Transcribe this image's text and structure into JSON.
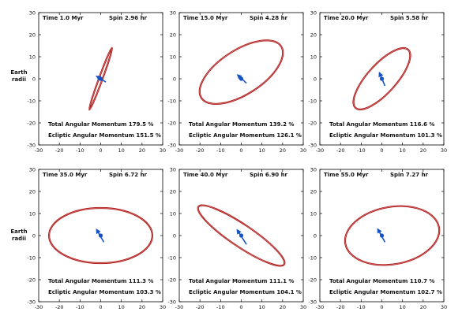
{
  "side_label": [
    "Earth",
    "radii"
  ],
  "colors": {
    "orbit": "#b01616",
    "arrow": "#1553c4",
    "frame": "#000000"
  },
  "chart_data": [
    {
      "type": "scatter",
      "time_label": "Time",
      "time": "1.0 Myr",
      "spin_label": "Spin",
      "spin": "2.96 hr",
      "total_label": "Total Angular Momentum",
      "total": "179.5 %",
      "ecliptic_label": "Ecliptic Angular Momentum",
      "ecliptic": "151.5 %",
      "xlim": [
        -30,
        30
      ],
      "ylim": [
        -30,
        30
      ],
      "xticks": [
        "-30",
        "-20",
        "-10",
        "0",
        "10",
        "20",
        "30"
      ],
      "yticks": [
        "30",
        "20",
        "10",
        "0",
        "-10",
        "-20",
        "-30"
      ],
      "orbit": {
        "cx": 0,
        "cy": 0,
        "rx": 16,
        "ry": 0.8,
        "angle_deg": 70
      },
      "arrow": {
        "x0": 2.5,
        "y0": -1.5,
        "x1": -2,
        "y1": 1.2
      }
    },
    {
      "type": "scatter",
      "time_label": "Time",
      "time": "15.0 Myr",
      "spin_label": "Spin",
      "spin": "4.28 hr",
      "total_label": "Total Angular Momentum",
      "total": "139.2 %",
      "ecliptic_label": "Ecliptic Angular Momentum",
      "ecliptic": "126.1 %",
      "xlim": [
        -30,
        30
      ],
      "ylim": [
        -30,
        30
      ],
      "xticks": [
        "-30",
        "-20",
        "-10",
        "0",
        "10",
        "20",
        "30"
      ],
      "yticks": [
        "30",
        "20",
        "10",
        "0",
        "-10",
        "-20",
        "-30"
      ],
      "orbit": {
        "cx": 0,
        "cy": 3,
        "rx": 23,
        "ry": 10,
        "angle_deg": 33
      },
      "arrow": {
        "x0": 2.5,
        "y0": -2,
        "x1": -1.8,
        "y1": 1.8
      }
    },
    {
      "type": "scatter",
      "time_label": "Time",
      "time": "20.0 Myr",
      "spin_label": "Spin",
      "spin": "5.58 hr",
      "total_label": "Total Angular Momentum",
      "total": "116.6 %",
      "ecliptic_label": "Ecliptic Angular Momentum",
      "ecliptic": "101.3 %",
      "xlim": [
        -30,
        30
      ],
      "ylim": [
        -30,
        30
      ],
      "xticks": [
        "-30",
        "-20",
        "-10",
        "0",
        "10",
        "20",
        "30"
      ],
      "yticks": [
        "30",
        "20",
        "10",
        "0",
        "-10",
        "-20",
        "-30"
      ],
      "orbit": {
        "cx": 0,
        "cy": 0,
        "rx": 19,
        "ry": 6.5,
        "angle_deg": 48
      },
      "arrow": {
        "x0": 1.5,
        "y0": -3.2,
        "x1": -1.2,
        "y1": 2.8
      }
    },
    {
      "type": "scatter",
      "time_label": "Time",
      "time": "35.0 Myr",
      "spin_label": "Spin",
      "spin": "6.72 hr",
      "total_label": "Total Angular Momentum",
      "total": "111.3 %",
      "ecliptic_label": "Ecliptic Angular Momentum",
      "ecliptic": "103.3 %",
      "xlim": [
        -30,
        30
      ],
      "ylim": [
        -30,
        30
      ],
      "xticks": [
        "-30",
        "-20",
        "-10",
        "0",
        "10",
        "20",
        "30"
      ],
      "yticks": [
        "30",
        "20",
        "10",
        "0",
        "-10",
        "-20",
        "-30"
      ],
      "orbit": {
        "cx": 0,
        "cy": 0,
        "rx": 25,
        "ry": 12.5,
        "angle_deg": 0
      },
      "arrow": {
        "x0": 1.5,
        "y0": -3,
        "x1": -2,
        "y1": 2.8
      }
    },
    {
      "type": "scatter",
      "time_label": "Time",
      "time": "40.0 Myr",
      "spin_label": "Spin",
      "spin": "6.90 hr",
      "total_label": "Total Angular Momentum",
      "total": "111.1 %",
      "ecliptic_label": "Ecliptic Angular Momentum",
      "ecliptic": "104.1 %",
      "xlim": [
        -30,
        30
      ],
      "ylim": [
        -30,
        30
      ],
      "xticks": [
        "-30",
        "-20",
        "-10",
        "0",
        "10",
        "20",
        "30"
      ],
      "yticks": [
        "30",
        "20",
        "10",
        "0",
        "-10",
        "-20",
        "-30"
      ],
      "orbit": {
        "cx": 0,
        "cy": 0,
        "rx": 25,
        "ry": 5,
        "angle_deg": -34
      },
      "arrow": {
        "x0": 2.5,
        "y0": -4,
        "x1": -2,
        "y1": 2.6
      }
    },
    {
      "type": "scatter",
      "time_label": "Time",
      "time": "55.0 Myr",
      "spin_label": "Spin",
      "spin": "7.27 hr",
      "total_label": "Total Angular Momentum",
      "total": "110.7 %",
      "ecliptic_label": "Ecliptic Angular Momentum",
      "ecliptic": "102.7 %",
      "xlim": [
        -30,
        30
      ],
      "ylim": [
        -30,
        30
      ],
      "xticks": [
        "-30",
        "-20",
        "-10",
        "0",
        "10",
        "20",
        "30"
      ],
      "yticks": [
        "30",
        "20",
        "10",
        "0",
        "-10",
        "-20",
        "-30"
      ],
      "orbit": {
        "cx": 5,
        "cy": 0,
        "rx": 23,
        "ry": 13,
        "angle_deg": 10
      },
      "arrow": {
        "x0": 1.5,
        "y0": -3,
        "x1": -2,
        "y1": 3
      }
    }
  ]
}
